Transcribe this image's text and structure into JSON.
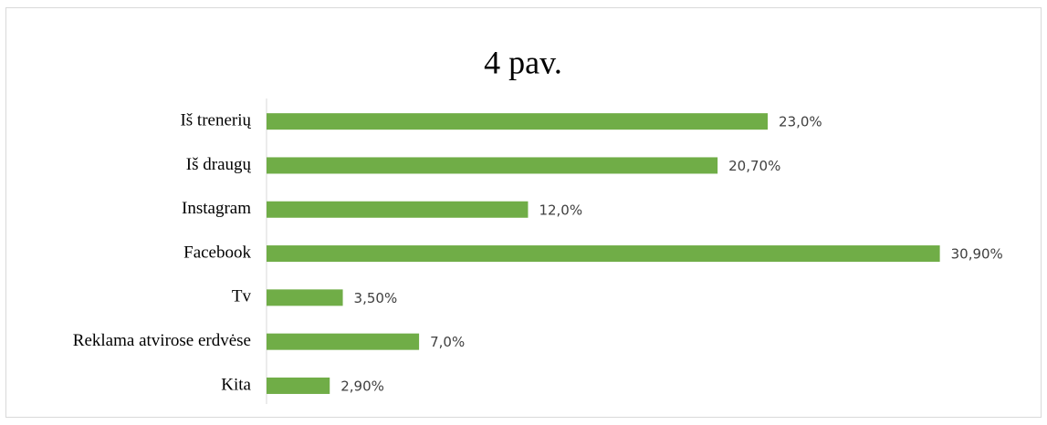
{
  "chart_data": {
    "type": "bar",
    "orientation": "horizontal",
    "title": "4 pav.",
    "categories": [
      "Iš trenerių",
      "Iš draugų",
      "Instagram",
      "Facebook",
      "Tv",
      "Reklama atvirose erdvėse",
      "Kita"
    ],
    "values": [
      23.0,
      20.7,
      12.0,
      30.9,
      3.5,
      7.0,
      2.9
    ],
    "value_labels": [
      "23,0%",
      "20,70%",
      "12,0%",
      "30,90%",
      "3,50%",
      "7,0%",
      "2,90%"
    ],
    "color": "#70ad47",
    "xlim": [
      0,
      31
    ]
  }
}
